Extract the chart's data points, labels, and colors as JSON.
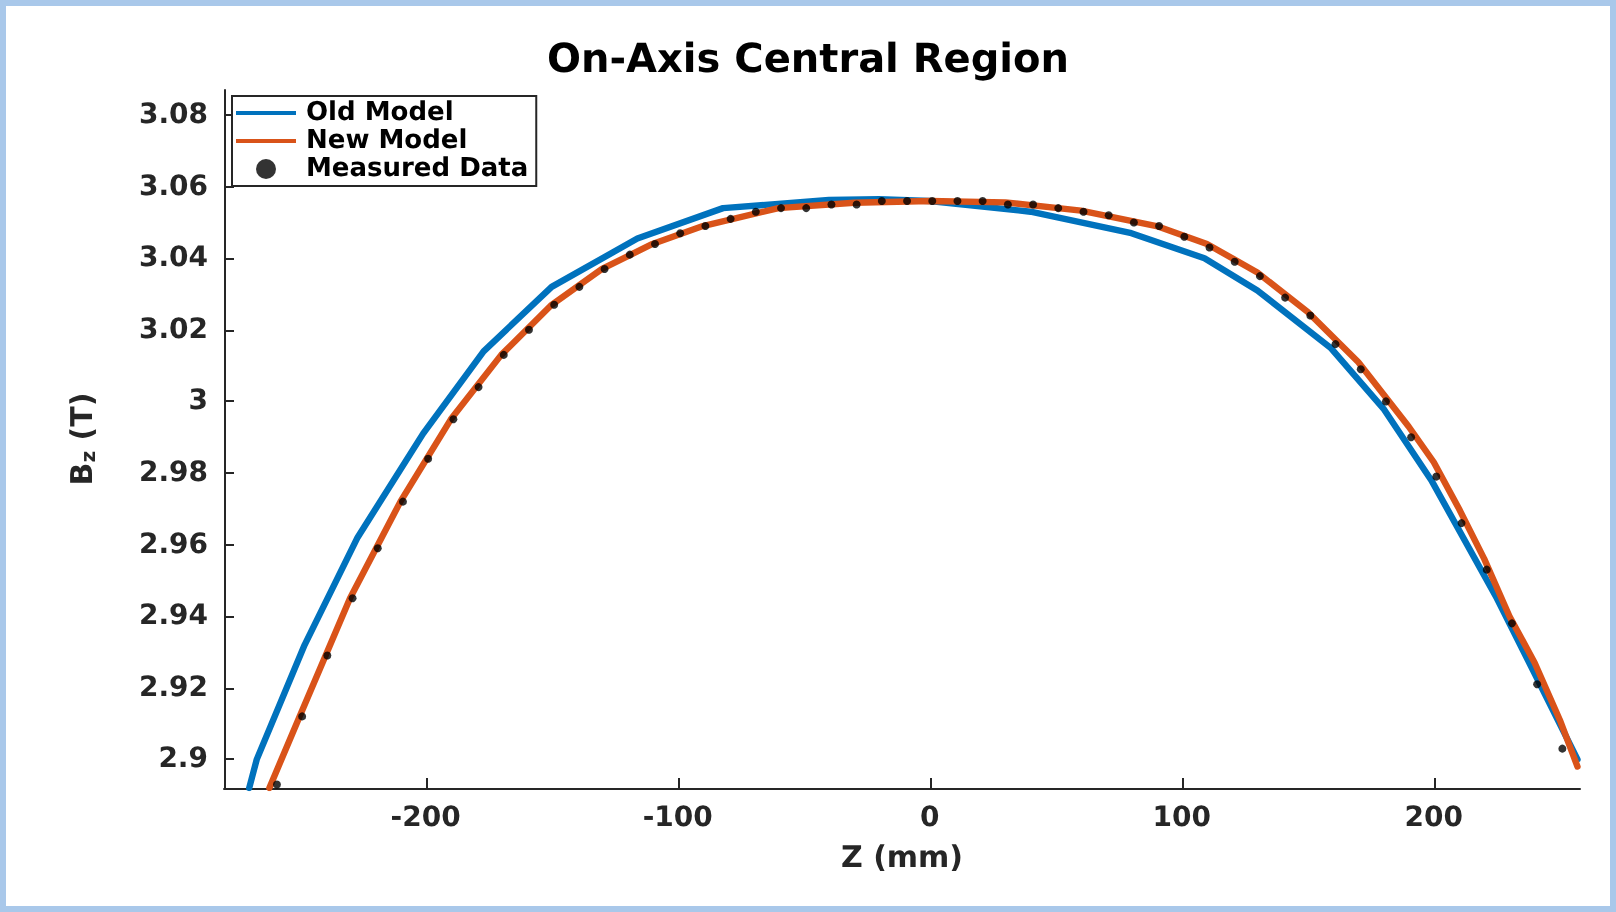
{
  "chart_data": {
    "type": "line",
    "title": "On-Axis Central Region",
    "xlabel": "Z (mm)",
    "ylabel": "B$_{z}$ (T)",
    "xlim": [
      -280,
      258
    ],
    "xticks": [
      -200,
      -100,
      0,
      100,
      200
    ],
    "ylim": [
      2.892,
      3.087
    ],
    "yticks": [
      2.9,
      2.92,
      2.94,
      2.96,
      2.98,
      3,
      3.02,
      3.04,
      3.06,
      3.08
    ],
    "grid": false,
    "legend": "top left",
    "line_style": "solid",
    "series": [
      {
        "name": "Old Model",
        "color": "#0072bd",
        "x": [
          -270,
          -267,
          -248,
          -227,
          -201,
          -177,
          -150,
          -116,
          -82,
          -40,
          -20,
          0,
          40,
          80,
          109,
          130,
          159,
          180,
          199,
          225,
          240,
          257
        ],
        "values": [
          2.892,
          2.9,
          2.932,
          2.962,
          2.991,
          3.014,
          3.032,
          3.0455,
          3.054,
          3.0563,
          3.0565,
          3.056,
          3.053,
          3.047,
          3.04,
          3.031,
          3.015,
          2.998,
          2.978,
          2.945,
          2.924,
          2.9
        ]
      },
      {
        "name": "New Model",
        "color": "#d95319",
        "x": [
          -262,
          -250,
          -230,
          -210,
          -190,
          -170,
          -150,
          -130,
          -110,
          -90,
          -60,
          -30,
          0,
          30,
          60,
          90,
          110,
          130,
          150,
          170,
          190,
          200,
          210,
          220,
          230,
          240,
          250,
          257
        ],
        "values": [
          2.892,
          2.912,
          2.945,
          2.972,
          2.995,
          3.013,
          3.027,
          3.037,
          3.044,
          3.049,
          3.054,
          3.0555,
          3.056,
          3.0556,
          3.0533,
          3.049,
          3.044,
          3.036,
          3.025,
          3.011,
          2.993,
          2.983,
          2.97,
          2.956,
          2.94,
          2.927,
          2.911,
          2.898
        ]
      },
      {
        "name": "Measured Data",
        "type": "scatter",
        "marker": "circle",
        "color": "#000000",
        "x": [
          -259,
          -249,
          -239,
          -229,
          -219,
          -209,
          -199,
          -189,
          -179,
          -169,
          -159,
          -149,
          -139,
          -129,
          -119,
          -109,
          -99,
          -89,
          -79,
          -69,
          -59,
          -49,
          -39,
          -29,
          -19,
          -9,
          1,
          11,
          21,
          31,
          41,
          51,
          61,
          71,
          81,
          91,
          101,
          111,
          121,
          131,
          141,
          151,
          161,
          171,
          181,
          191,
          201,
          211,
          221,
          231,
          241,
          251
        ],
        "values": [
          2.893,
          2.912,
          2.929,
          2.945,
          2.959,
          2.972,
          2.984,
          2.995,
          3.004,
          3.013,
          3.02,
          3.027,
          3.032,
          3.037,
          3.041,
          3.044,
          3.047,
          3.049,
          3.051,
          3.053,
          3.054,
          3.054,
          3.055,
          3.055,
          3.056,
          3.056,
          3.056,
          3.056,
          3.056,
          3.055,
          3.055,
          3.054,
          3.053,
          3.052,
          3.05,
          3.049,
          3.046,
          3.043,
          3.039,
          3.035,
          3.029,
          3.024,
          3.016,
          3.009,
          3,
          2.99,
          2.979,
          2.966,
          2.953,
          2.938,
          2.921,
          2.903
        ]
      }
    ]
  }
}
